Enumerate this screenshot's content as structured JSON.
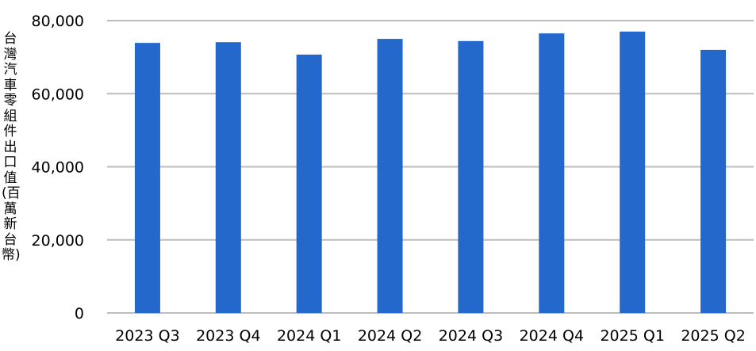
{
  "chart_data": {
    "type": "bar",
    "title": "",
    "xlabel": "",
    "ylabel": "台灣汽車零組件出口值(百萬新台幣)",
    "categories": [
      "2023 Q3",
      "2023 Q4",
      "2024 Q1",
      "2024 Q2",
      "2024 Q3",
      "2024 Q4",
      "2025 Q1",
      "2025 Q2"
    ],
    "values": [
      73900,
      74100,
      70700,
      75000,
      74400,
      76500,
      77000,
      72000
    ],
    "ylim": [
      0,
      80000
    ],
    "yticks": [
      0,
      20000,
      40000,
      60000,
      80000
    ],
    "ytick_labels": [
      "0",
      "20,000",
      "40,000",
      "60,000",
      "80,000"
    ],
    "grid": true,
    "bar_color": "#2468CC",
    "grid_color": "#BDBDBD"
  }
}
